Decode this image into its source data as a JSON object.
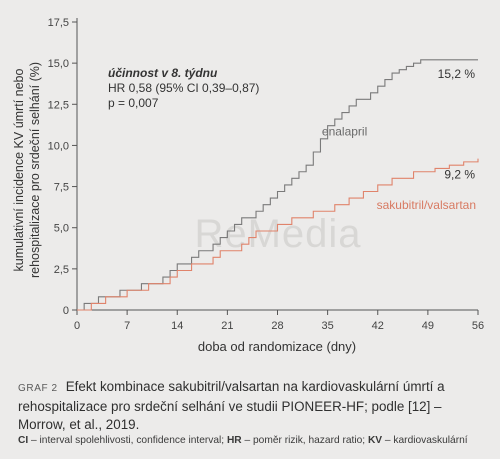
{
  "chart_data": {
    "type": "line",
    "xlabel": "doba od randomizace (dny)",
    "ylabel": [
      "kumulativní incidence KV úmrtí nebo",
      "rehospitalizace pro srdeční selhání (%)"
    ],
    "xlim": [
      0,
      56
    ],
    "ylim": [
      0,
      17.5
    ],
    "x_ticks": [
      0,
      7,
      14,
      21,
      28,
      35,
      42,
      49,
      56
    ],
    "y_ticks": [
      0,
      2.5,
      5.0,
      7.5,
      10.0,
      12.5,
      15.0,
      17.5
    ],
    "y_tick_labels": [
      "0",
      "2,5",
      "5,0",
      "7,5",
      "10,0",
      "12,5",
      "15,0",
      "17,5"
    ],
    "grid": false,
    "annotation": {
      "line1": "účinnost v 8. týdnu",
      "line2": "HR 0,58 (95% CI 0,39–0,87)",
      "line3": "p = 0,007"
    },
    "watermark": "ReMedia",
    "series": [
      {
        "name": "enalapril",
        "end_label": "15,2 %",
        "color": "#7a7a7a",
        "points": [
          [
            0,
            0
          ],
          [
            1,
            0.4
          ],
          [
            2,
            0.4
          ],
          [
            3,
            0.8
          ],
          [
            5,
            0.8
          ],
          [
            6,
            1.2
          ],
          [
            8,
            1.2
          ],
          [
            9,
            1.6
          ],
          [
            11,
            1.6
          ],
          [
            12,
            2.0
          ],
          [
            13,
            2.4
          ],
          [
            14,
            2.8
          ],
          [
            15,
            2.8
          ],
          [
            16,
            3.2
          ],
          [
            17,
            3.6
          ],
          [
            18,
            3.6
          ],
          [
            19,
            4.0
          ],
          [
            20,
            4.4
          ],
          [
            21,
            4.8
          ],
          [
            22,
            5.2
          ],
          [
            23,
            5.6
          ],
          [
            24,
            5.6
          ],
          [
            25,
            6.0
          ],
          [
            26,
            6.4
          ],
          [
            27,
            6.8
          ],
          [
            28,
            7.2
          ],
          [
            29,
            7.6
          ],
          [
            30,
            8.0
          ],
          [
            31,
            8.4
          ],
          [
            32,
            8.8
          ],
          [
            33,
            9.6
          ],
          [
            34,
            10.4
          ],
          [
            35,
            11.2
          ],
          [
            36,
            11.6
          ],
          [
            37,
            12.0
          ],
          [
            38,
            12.4
          ],
          [
            39,
            12.8
          ],
          [
            40,
            12.8
          ],
          [
            41,
            13.2
          ],
          [
            42,
            13.6
          ],
          [
            43,
            14.0
          ],
          [
            44,
            14.4
          ],
          [
            45,
            14.6
          ],
          [
            46,
            14.8
          ],
          [
            47,
            15.0
          ],
          [
            48,
            15.2
          ],
          [
            56,
            15.2
          ]
        ]
      },
      {
        "name": "sakubitril/valsartan",
        "end_label": "9,2 %",
        "color": "#e0836b",
        "points": [
          [
            0,
            0
          ],
          [
            2,
            0.4
          ],
          [
            3,
            0.4
          ],
          [
            4,
            0.8
          ],
          [
            6,
            0.8
          ],
          [
            7,
            1.2
          ],
          [
            9,
            1.2
          ],
          [
            10,
            1.6
          ],
          [
            12,
            1.6
          ],
          [
            13,
            2.0
          ],
          [
            14,
            2.4
          ],
          [
            15,
            2.4
          ],
          [
            16,
            2.8
          ],
          [
            18,
            2.8
          ],
          [
            19,
            3.2
          ],
          [
            20,
            3.6
          ],
          [
            22,
            3.6
          ],
          [
            23,
            4.0
          ],
          [
            24,
            4.4
          ],
          [
            25,
            4.8
          ],
          [
            27,
            4.8
          ],
          [
            28,
            5.2
          ],
          [
            30,
            5.6
          ],
          [
            32,
            5.6
          ],
          [
            33,
            6.0
          ],
          [
            35,
            6.0
          ],
          [
            36,
            6.4
          ],
          [
            38,
            6.8
          ],
          [
            40,
            7.2
          ],
          [
            42,
            7.6
          ],
          [
            44,
            8.0
          ],
          [
            46,
            8.0
          ],
          [
            47,
            8.4
          ],
          [
            49,
            8.4
          ],
          [
            50,
            8.6
          ],
          [
            52,
            8.8
          ],
          [
            54,
            9.0
          ],
          [
            56,
            9.2
          ]
        ]
      }
    ]
  },
  "caption": {
    "label": "GRAF 2",
    "text": "Efekt kombinace sakubitril/valsartan na kardiovaskulární úmrtí a rehospitalizace pro srdeční selhání ve studii PIONEER-HF; podle [12] – Morrow, et al., 2019."
  },
  "footnote": {
    "ci_abbr": "CI",
    "ci_text": " – interval spolehlivosti, confidence interval; ",
    "hr_abbr": "HR",
    "hr_text": " – poměr rizik, hazard ratio; ",
    "kv_abbr": "KV",
    "kv_text": " – kardiovaskulární"
  }
}
